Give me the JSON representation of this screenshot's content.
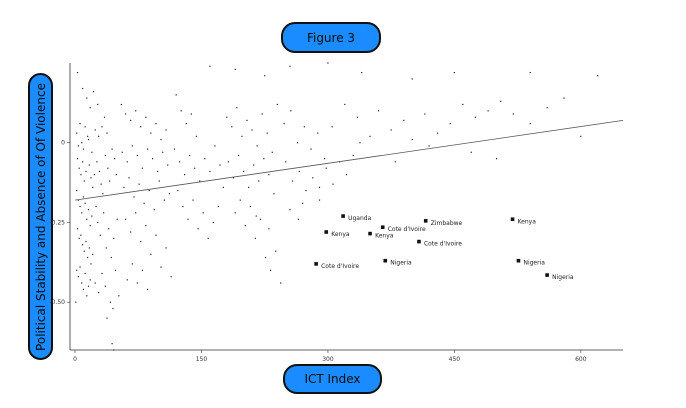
{
  "chart_data": {
    "type": "scatter",
    "title": "Figure 3",
    "xlabel": "ICT Index",
    "ylabel": "Political Stability and Absence of Of Violence",
    "xlim": [
      0,
      650
    ],
    "ylim": [
      -0.65,
      0.25
    ],
    "xticks": [
      0,
      150,
      300,
      450,
      600
    ],
    "xtick_labels": [
      "0",
      "150",
      "300",
      "450",
      "600"
    ],
    "yticks": [
      0,
      -0.25,
      -0.5
    ],
    "ytick_labels": [
      "0",
      "-0.25",
      "-0.50"
    ],
    "grid": false,
    "legend": "none",
    "point_color": "#222222",
    "trend_line": {
      "x": [
        0,
        650
      ],
      "y": [
        -0.18,
        0.07
      ]
    },
    "highlighted": [
      {
        "label": "Uganda",
        "x": 318,
        "y": -0.23
      },
      {
        "label": "Kenya",
        "x": 298,
        "y": -0.28
      },
      {
        "label": "Cote d'Ivoire",
        "x": 365,
        "y": -0.265
      },
      {
        "label": "Kenya",
        "x": 350,
        "y": -0.285
      },
      {
        "label": "Zimbabwe",
        "x": 416,
        "y": -0.245
      },
      {
        "label": "Kenya",
        "x": 519,
        "y": -0.24
      },
      {
        "label": "Cote d'Ivoire",
        "x": 408,
        "y": -0.31
      },
      {
        "label": "Cote d'Ivoire",
        "x": 286,
        "y": -0.38
      },
      {
        "label": "Nigeria",
        "x": 368,
        "y": -0.37
      },
      {
        "label": "Nigeria",
        "x": 526,
        "y": -0.37
      },
      {
        "label": "Nigeria",
        "x": 560,
        "y": -0.415
      }
    ],
    "points": [
      [
        3,
        0.22
      ],
      [
        9,
        0.17
      ],
      [
        14,
        0.14
      ],
      [
        22,
        0.16
      ],
      [
        18,
        0.11
      ],
      [
        27,
        0.12
      ],
      [
        35,
        0.08
      ],
      [
        6,
        0.06
      ],
      [
        12,
        0.05
      ],
      [
        15,
        0.02
      ],
      [
        2,
        0.03
      ],
      [
        4,
        -0.01
      ],
      [
        8,
        0.0
      ],
      [
        10,
        -0.02
      ],
      [
        16,
        0.01
      ],
      [
        20,
        -0.03
      ],
      [
        24,
        0.04
      ],
      [
        28,
        0.02
      ],
      [
        32,
        0.05
      ],
      [
        38,
        0.03
      ],
      [
        3,
        -0.05
      ],
      [
        5,
        -0.08
      ],
      [
        7,
        -0.1
      ],
      [
        9,
        -0.06
      ],
      [
        11,
        -0.12
      ],
      [
        13,
        -0.09
      ],
      [
        17,
        -0.07
      ],
      [
        19,
        -0.11
      ],
      [
        21,
        -0.14
      ],
      [
        23,
        -0.1
      ],
      [
        2,
        -0.15
      ],
      [
        4,
        -0.18
      ],
      [
        6,
        -0.2
      ],
      [
        8,
        -0.22
      ],
      [
        10,
        -0.17
      ],
      [
        12,
        -0.19
      ],
      [
        14,
        -0.24
      ],
      [
        16,
        -0.21
      ],
      [
        18,
        -0.26
      ],
      [
        20,
        -0.23
      ],
      [
        3,
        -0.27
      ],
      [
        5,
        -0.3
      ],
      [
        7,
        -0.29
      ],
      [
        9,
        -0.32
      ],
      [
        11,
        -0.34
      ],
      [
        13,
        -0.31
      ],
      [
        15,
        -0.36
      ],
      [
        17,
        -0.33
      ],
      [
        19,
        -0.38
      ],
      [
        21,
        -0.35
      ],
      [
        2,
        -0.4
      ],
      [
        4,
        -0.42
      ],
      [
        6,
        -0.39
      ],
      [
        8,
        -0.44
      ],
      [
        10,
        -0.46
      ],
      [
        12,
        -0.41
      ],
      [
        14,
        -0.48
      ],
      [
        16,
        -0.45
      ],
      [
        18,
        -0.43
      ],
      [
        1,
        -0.5
      ],
      [
        26,
        -0.06
      ],
      [
        29,
        -0.09
      ],
      [
        31,
        -0.13
      ],
      [
        33,
        -0.16
      ],
      [
        36,
        -0.04
      ],
      [
        39,
        -0.08
      ],
      [
        41,
        -0.12
      ],
      [
        44,
        -0.02
      ],
      [
        47,
        -0.05
      ],
      [
        49,
        -0.1
      ],
      [
        25,
        -0.2
      ],
      [
        27,
        -0.25
      ],
      [
        30,
        -0.29
      ],
      [
        34,
        -0.22
      ],
      [
        37,
        -0.33
      ],
      [
        40,
        -0.27
      ],
      [
        43,
        -0.36
      ],
      [
        46,
        -0.3
      ],
      [
        48,
        -0.4
      ],
      [
        50,
        -0.24
      ],
      [
        24,
        -0.44
      ],
      [
        28,
        -0.47
      ],
      [
        32,
        -0.41
      ],
      [
        36,
        -0.45
      ],
      [
        42,
        -0.5
      ],
      [
        45,
        -0.52
      ],
      [
        38,
        -0.55
      ],
      [
        44,
        -0.63
      ],
      [
        46,
        -0.65
      ],
      [
        52,
        -0.48
      ],
      [
        55,
        0.12
      ],
      [
        60,
        0.09
      ],
      [
        66,
        0.07
      ],
      [
        72,
        0.1
      ],
      [
        78,
        0.05
      ],
      [
        84,
        0.08
      ],
      [
        90,
        0.03
      ],
      [
        96,
        0.06
      ],
      [
        102,
        0.01
      ],
      [
        108,
        0.04
      ],
      [
        56,
        -0.03
      ],
      [
        62,
        -0.06
      ],
      [
        68,
        -0.01
      ],
      [
        74,
        -0.04
      ],
      [
        80,
        -0.08
      ],
      [
        86,
        -0.02
      ],
      [
        92,
        -0.05
      ],
      [
        98,
        -0.09
      ],
      [
        104,
        -0.03
      ],
      [
        110,
        -0.07
      ],
      [
        58,
        -0.14
      ],
      [
        64,
        -0.11
      ],
      [
        70,
        -0.17
      ],
      [
        76,
        -0.13
      ],
      [
        82,
        -0.19
      ],
      [
        88,
        -0.15
      ],
      [
        94,
        -0.21
      ],
      [
        100,
        -0.12
      ],
      [
        106,
        -0.18
      ],
      [
        112,
        -0.16
      ],
      [
        60,
        -0.24
      ],
      [
        66,
        -0.28
      ],
      [
        72,
        -0.22
      ],
      [
        78,
        -0.31
      ],
      [
        84,
        -0.26
      ],
      [
        90,
        -0.35
      ],
      [
        96,
        -0.29
      ],
      [
        102,
        -0.39
      ],
      [
        108,
        -0.33
      ],
      [
        114,
        -0.42
      ],
      [
        62,
        -0.43
      ],
      [
        68,
        -0.38
      ],
      [
        74,
        -0.44
      ],
      [
        80,
        -0.4
      ],
      [
        86,
        -0.46
      ],
      [
        120,
        0.15
      ],
      [
        126,
        0.1
      ],
      [
        132,
        0.06
      ],
      [
        138,
        0.09
      ],
      [
        144,
        0.02
      ],
      [
        118,
        -0.02
      ],
      [
        124,
        -0.06
      ],
      [
        130,
        -0.1
      ],
      [
        136,
        -0.04
      ],
      [
        142,
        -0.08
      ],
      [
        148,
        -0.12
      ],
      [
        154,
        -0.05
      ],
      [
        160,
        -0.09
      ],
      [
        166,
        -0.01
      ],
      [
        172,
        -0.07
      ],
      [
        122,
        -0.15
      ],
      [
        128,
        -0.2
      ],
      [
        134,
        -0.24
      ],
      [
        140,
        -0.18
      ],
      [
        146,
        -0.27
      ],
      [
        152,
        -0.22
      ],
      [
        158,
        -0.3
      ],
      [
        164,
        -0.25
      ],
      [
        170,
        -0.2
      ],
      [
        176,
        -0.14
      ],
      [
        180,
        0.08
      ],
      [
        186,
        0.05
      ],
      [
        192,
        0.11
      ],
      [
        198,
        0.02
      ],
      [
        204,
        0.07
      ],
      [
        210,
        0.04
      ],
      [
        216,
        -0.01
      ],
      [
        222,
        0.09
      ],
      [
        228,
        0.03
      ],
      [
        234,
        -0.03
      ],
      [
        182,
        -0.06
      ],
      [
        188,
        -0.11
      ],
      [
        194,
        -0.04
      ],
      [
        200,
        -0.09
      ],
      [
        206,
        -0.14
      ],
      [
        212,
        -0.07
      ],
      [
        218,
        -0.12
      ],
      [
        224,
        -0.05
      ],
      [
        230,
        -0.1
      ],
      [
        236,
        -0.16
      ],
      [
        190,
        -0.22
      ],
      [
        196,
        -0.18
      ],
      [
        202,
        -0.26
      ],
      [
        208,
        -0.2
      ],
      [
        214,
        -0.3
      ],
      [
        220,
        -0.24
      ],
      [
        226,
        -0.36
      ],
      [
        232,
        -0.4
      ],
      [
        238,
        -0.34
      ],
      [
        244,
        -0.44
      ],
      [
        240,
        0.12
      ],
      [
        248,
        0.06
      ],
      [
        256,
        0.1
      ],
      [
        264,
        0.0
      ],
      [
        272,
        0.05
      ],
      [
        280,
        -0.02
      ],
      [
        288,
        0.03
      ],
      [
        296,
        -0.05
      ],
      [
        250,
        -0.06
      ],
      [
        258,
        -0.12
      ],
      [
        266,
        -0.09
      ],
      [
        274,
        -0.15
      ],
      [
        282,
        -0.11
      ],
      [
        290,
        -0.18
      ],
      [
        298,
        -0.08
      ],
      [
        306,
        -0.13
      ],
      [
        314,
        -0.06
      ],
      [
        322,
        -0.1
      ],
      [
        330,
        -0.04
      ],
      [
        338,
        0.0
      ],
      [
        305,
        0.05
      ],
      [
        320,
        0.12
      ],
      [
        335,
        0.08
      ],
      [
        350,
        0.02
      ],
      [
        360,
        0.1
      ],
      [
        375,
        0.04
      ],
      [
        390,
        0.07
      ],
      [
        400,
        0.01
      ],
      [
        415,
        0.09
      ],
      [
        430,
        0.03
      ],
      [
        445,
        0.06
      ],
      [
        460,
        0.12
      ],
      [
        475,
        0.08
      ],
      [
        490,
        0.1
      ],
      [
        505,
        0.13
      ],
      [
        520,
        0.09
      ],
      [
        540,
        0.06
      ],
      [
        560,
        0.11
      ],
      [
        580,
        0.14
      ],
      [
        600,
        0.02
      ],
      [
        470,
        -0.03
      ],
      [
        500,
        -0.05
      ],
      [
        420,
        -0.01
      ],
      [
        380,
        -0.06
      ],
      [
        290,
        -0.14
      ],
      [
        265,
        -0.24
      ],
      [
        255,
        -0.21
      ],
      [
        270,
        -0.19
      ],
      [
        230,
        -0.27
      ],
      [
        215,
        -0.23
      ],
      [
        160,
        0.24
      ],
      [
        190,
        0.23
      ],
      [
        225,
        0.21
      ],
      [
        255,
        0.24
      ],
      [
        300,
        0.25
      ],
      [
        340,
        0.22
      ],
      [
        400,
        0.2
      ],
      [
        450,
        0.22
      ],
      [
        540,
        0.22
      ],
      [
        620,
        0.21
      ]
    ]
  }
}
